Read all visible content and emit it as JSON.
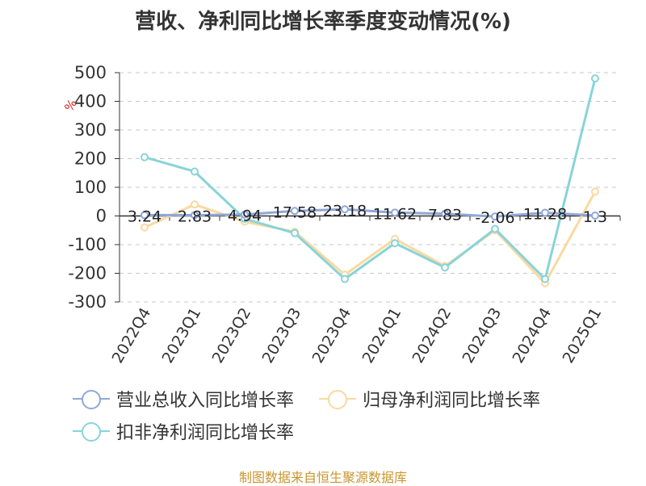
{
  "chart_data": {
    "type": "line",
    "title": "营收、净利同比增长率季度变动情况(%)",
    "ylabel": "%",
    "ylim": [
      -300,
      500
    ],
    "yticks": [
      500,
      400,
      300,
      200,
      100,
      0,
      -100,
      -200,
      -300
    ],
    "grid": "horizontal dashed",
    "legend_position": "bottom",
    "categories": [
      "2022Q4",
      "2023Q1",
      "2023Q2",
      "2023Q3",
      "2023Q4",
      "2024Q1",
      "2024Q2",
      "2024Q3",
      "2024Q4",
      "2025Q1"
    ],
    "series": [
      {
        "name": "营业总收入同比增长率",
        "color": "#8fa8d8",
        "values": [
          3.24,
          2.83,
          4.94,
          17.58,
          23.18,
          11.62,
          7.83,
          -2.06,
          11.28,
          1.3
        ],
        "labels": [
          "3.24",
          "2.83",
          "4.94",
          "17.58",
          "23.18",
          "11.62",
          "7.83",
          "-2.06",
          "11.28",
          "1.3"
        ]
      },
      {
        "name": "归母净利润同比增长率",
        "color": "#fad9a0",
        "values": [
          -40,
          40,
          -20,
          -55,
          -205,
          -80,
          -175,
          -50,
          -235,
          85
        ]
      },
      {
        "name": "扣非净利润同比增长率",
        "color": "#88d4d8",
        "values": [
          205,
          155,
          -10,
          -60,
          -220,
          -95,
          -180,
          -45,
          -220,
          480
        ]
      }
    ]
  },
  "footer": {
    "source": "制图数据来自恒生聚源数据库"
  }
}
